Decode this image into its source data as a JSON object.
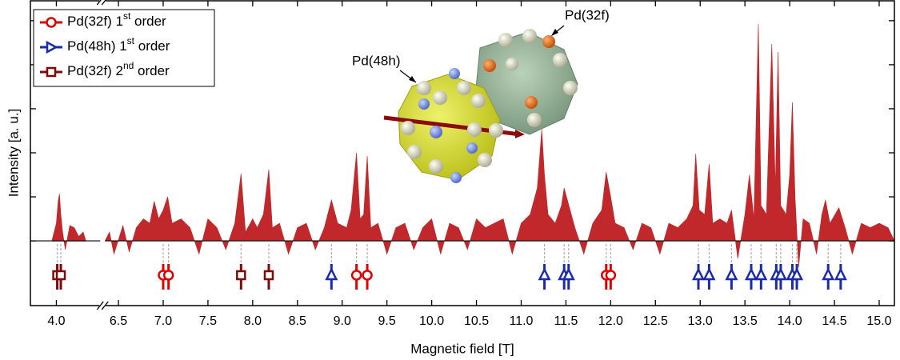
{
  "chart_data": {
    "type": "spectrum",
    "xlabel": "Magnetic field [T]",
    "ylabel": "Intensity [a. u.]",
    "xlim": [
      3.71,
      15.17
    ],
    "xbreak": [
      4.49,
      6.35
    ],
    "ylim": [
      -1.47,
      5.47
    ],
    "yticks": [
      0,
      1,
      2,
      3,
      4,
      5
    ],
    "xticks": [
      {
        "value": 4,
        "label": "4.0"
      },
      6.5,
      {
        "value": 7,
        "label": "7.0"
      },
      7.5,
      {
        "value": 8,
        "label": "8.0"
      },
      8.5,
      {
        "value": 9,
        "label": "9.0"
      },
      9.5,
      {
        "value": 10,
        "label": "10.0"
      },
      10.5,
      {
        "value": 11,
        "label": "11.0"
      },
      11.5,
      {
        "value": 12,
        "label": "12.0"
      },
      12.5,
      {
        "value": 13,
        "label": "13.0"
      },
      13.5,
      {
        "value": 14,
        "label": "14.0"
      },
      14.5,
      {
        "value": 15,
        "label": "15.0"
      }
    ],
    "legend": "upper left",
    "spectrum": {
      "color": "#c0282c",
      "x": [
        3.95,
        4.0,
        4.02,
        4.035,
        4.05,
        4.07,
        4.1,
        4.15,
        4.2,
        4.25,
        4.3,
        4.33,
        null,
        6.35,
        6.4,
        6.45,
        6.55,
        6.62,
        6.7,
        6.78,
        6.85,
        6.9,
        6.95,
        7.0,
        7.05,
        7.1,
        7.2,
        7.3,
        7.4,
        7.5,
        7.6,
        7.7,
        7.8,
        7.87,
        7.92,
        8.0,
        8.05,
        8.12,
        8.18,
        8.22,
        8.3,
        8.4,
        8.5,
        8.6,
        8.7,
        8.8,
        8.88,
        8.95,
        9.05,
        9.1,
        9.16,
        9.2,
        9.24,
        9.28,
        9.32,
        9.4,
        9.5,
        9.6,
        9.7,
        9.8,
        9.9,
        10.0,
        10.1,
        10.2,
        10.3,
        10.4,
        10.5,
        10.6,
        10.7,
        10.8,
        10.9,
        11.0,
        11.1,
        11.18,
        11.23,
        11.26,
        11.3,
        11.38,
        11.45,
        11.48,
        11.52,
        11.6,
        11.7,
        11.8,
        11.9,
        11.95,
        12.0,
        12.05,
        12.15,
        12.25,
        12.35,
        12.45,
        12.55,
        12.65,
        12.75,
        12.85,
        12.92,
        12.95,
        12.99,
        13.05,
        13.1,
        13.14,
        13.22,
        13.3,
        13.35,
        13.42,
        13.5,
        13.55,
        13.6,
        13.65,
        13.68,
        13.74,
        13.8,
        13.84,
        13.87,
        13.9,
        13.96,
        14.0,
        14.03,
        14.06,
        14.1,
        14.15,
        14.22,
        14.3,
        14.36,
        14.4,
        14.45,
        14.55,
        14.62,
        14.7,
        14.8,
        14.9,
        15.0,
        15.1,
        15.17
      ],
      "values": [
        0,
        0.4,
        0.9,
        1.07,
        0.6,
        0.2,
        -0.2,
        0.35,
        0.3,
        0.1,
        0.2,
        0,
        null,
        0,
        0.2,
        -0.3,
        0.35,
        -0.25,
        0.3,
        0.5,
        0.4,
        0.9,
        0.5,
        0.7,
        1.0,
        0.4,
        0.5,
        0.3,
        -0.3,
        0.5,
        0.3,
        -0.2,
        0.4,
        1.53,
        0.2,
        0.5,
        0.3,
        0.6,
        1.62,
        0.3,
        0.4,
        -0.3,
        0.3,
        0.4,
        -0.2,
        0.3,
        0.93,
        0.4,
        0.3,
        0.7,
        2.0,
        0.5,
        0.6,
        1.93,
        0.3,
        0.4,
        -0.3,
        0.3,
        0.4,
        -0.2,
        0.3,
        0.5,
        -0.3,
        0.4,
        0.3,
        -0.2,
        0.5,
        0.3,
        0.4,
        0.5,
        -0.3,
        0.4,
        0.6,
        1.2,
        2.53,
        1.5,
        0.6,
        0.4,
        0.8,
        1.2,
        0.9,
        0.3,
        -0.3,
        0.4,
        0.7,
        1.56,
        1.0,
        0.4,
        0.3,
        -0.2,
        0.4,
        0.3,
        -0.3,
        0.4,
        0.3,
        0.5,
        0.8,
        1.98,
        0.7,
        0.6,
        1.75,
        0.4,
        0.5,
        0.4,
        0.7,
        -0.4,
        0.6,
        1.5,
        0.5,
        4.93,
        0.8,
        0.6,
        4.47,
        1.2,
        4.29,
        0.8,
        0.6,
        1.5,
        3.15,
        1.0,
        -0.6,
        0.5,
        0.4,
        -0.3,
        0.6,
        0.93,
        0.4,
        0.75,
        0.3,
        -0.3,
        0.4,
        0.3,
        0.4,
        0.3,
        0
      ]
    },
    "series": [
      {
        "name": "Pd(32f) 1st order",
        "color": "#e00000",
        "marker": "circle",
        "x": [
          7.0,
          7.06,
          9.16,
          9.28,
          11.95,
          12.0
        ]
      },
      {
        "name": "Pd(48h) 1st order",
        "color": "#1a2aa8",
        "marker": "triangle",
        "x": [
          8.88,
          11.26,
          11.48,
          11.53,
          12.98,
          13.1,
          13.35,
          13.57,
          13.68,
          13.85,
          13.9,
          14.03,
          14.08,
          14.43,
          14.57
        ]
      },
      {
        "name": "Pd(32f) 2nd order",
        "color": "#7a0c0c",
        "marker": "square",
        "x": [
          4.01,
          4.05,
          7.87,
          8.18
        ]
      }
    ],
    "annotations": [
      "Pd(48h)",
      "Pd(32f)"
    ]
  }
}
